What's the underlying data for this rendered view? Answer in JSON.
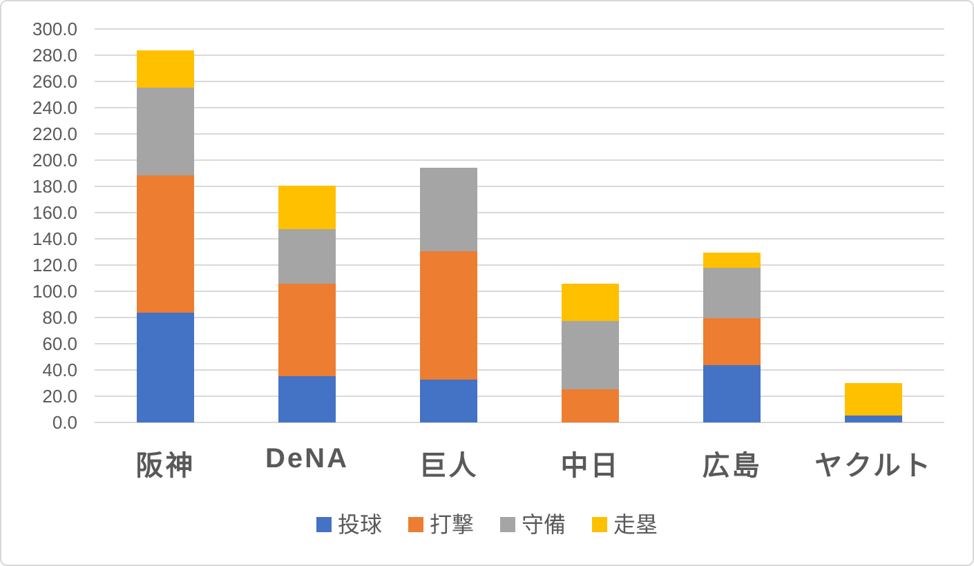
{
  "chart_data": {
    "type": "bar",
    "subtype": "stacked-column",
    "title": "",
    "categories": [
      "阪神",
      "DeNA",
      "巨人",
      "中日",
      "広島",
      "ヤクルト"
    ],
    "series": [
      {
        "name": "投球",
        "color": "#4472C4",
        "values": [
          83.5,
          35.5,
          32.5,
          0.0,
          43.5,
          5.5
        ]
      },
      {
        "name": "打撃",
        "color": "#ED7D31",
        "values": [
          105.0,
          70.5,
          98.0,
          25.5,
          36.0,
          0.0
        ]
      },
      {
        "name": "守備",
        "color": "#A5A5A5",
        "values": [
          67.0,
          41.5,
          63.5,
          52.0,
          38.5,
          0.0
        ]
      },
      {
        "name": "走塁",
        "color": "#FFC000",
        "values": [
          28.0,
          33.0,
          0.0,
          28.5,
          11.5,
          24.5
        ]
      }
    ],
    "totals": [
      283.5,
      180.5,
      194.0,
      106.0,
      129.5,
      30.0
    ],
    "ylim": [
      0,
      300
    ],
    "y_tick_step": 20,
    "y_ticks": [
      "300.0",
      "280.0",
      "260.0",
      "240.0",
      "220.0",
      "200.0",
      "180.0",
      "160.0",
      "140.0",
      "120.0",
      "100.0",
      "80.0",
      "60.0",
      "40.0",
      "20.0",
      "0.0"
    ],
    "xlabel": "",
    "ylabel": "",
    "grid": true,
    "legend_position": "bottom",
    "legend": [
      "投球",
      "打撃",
      "守備",
      "走塁"
    ]
  },
  "style": {
    "background": "#FFFFFF",
    "border_color": "#D7D7D7",
    "gridline_color": "#D9D9D9",
    "tick_label_color": "#595959",
    "category_label_color": "#595959",
    "legend_label_color": "#595959"
  }
}
